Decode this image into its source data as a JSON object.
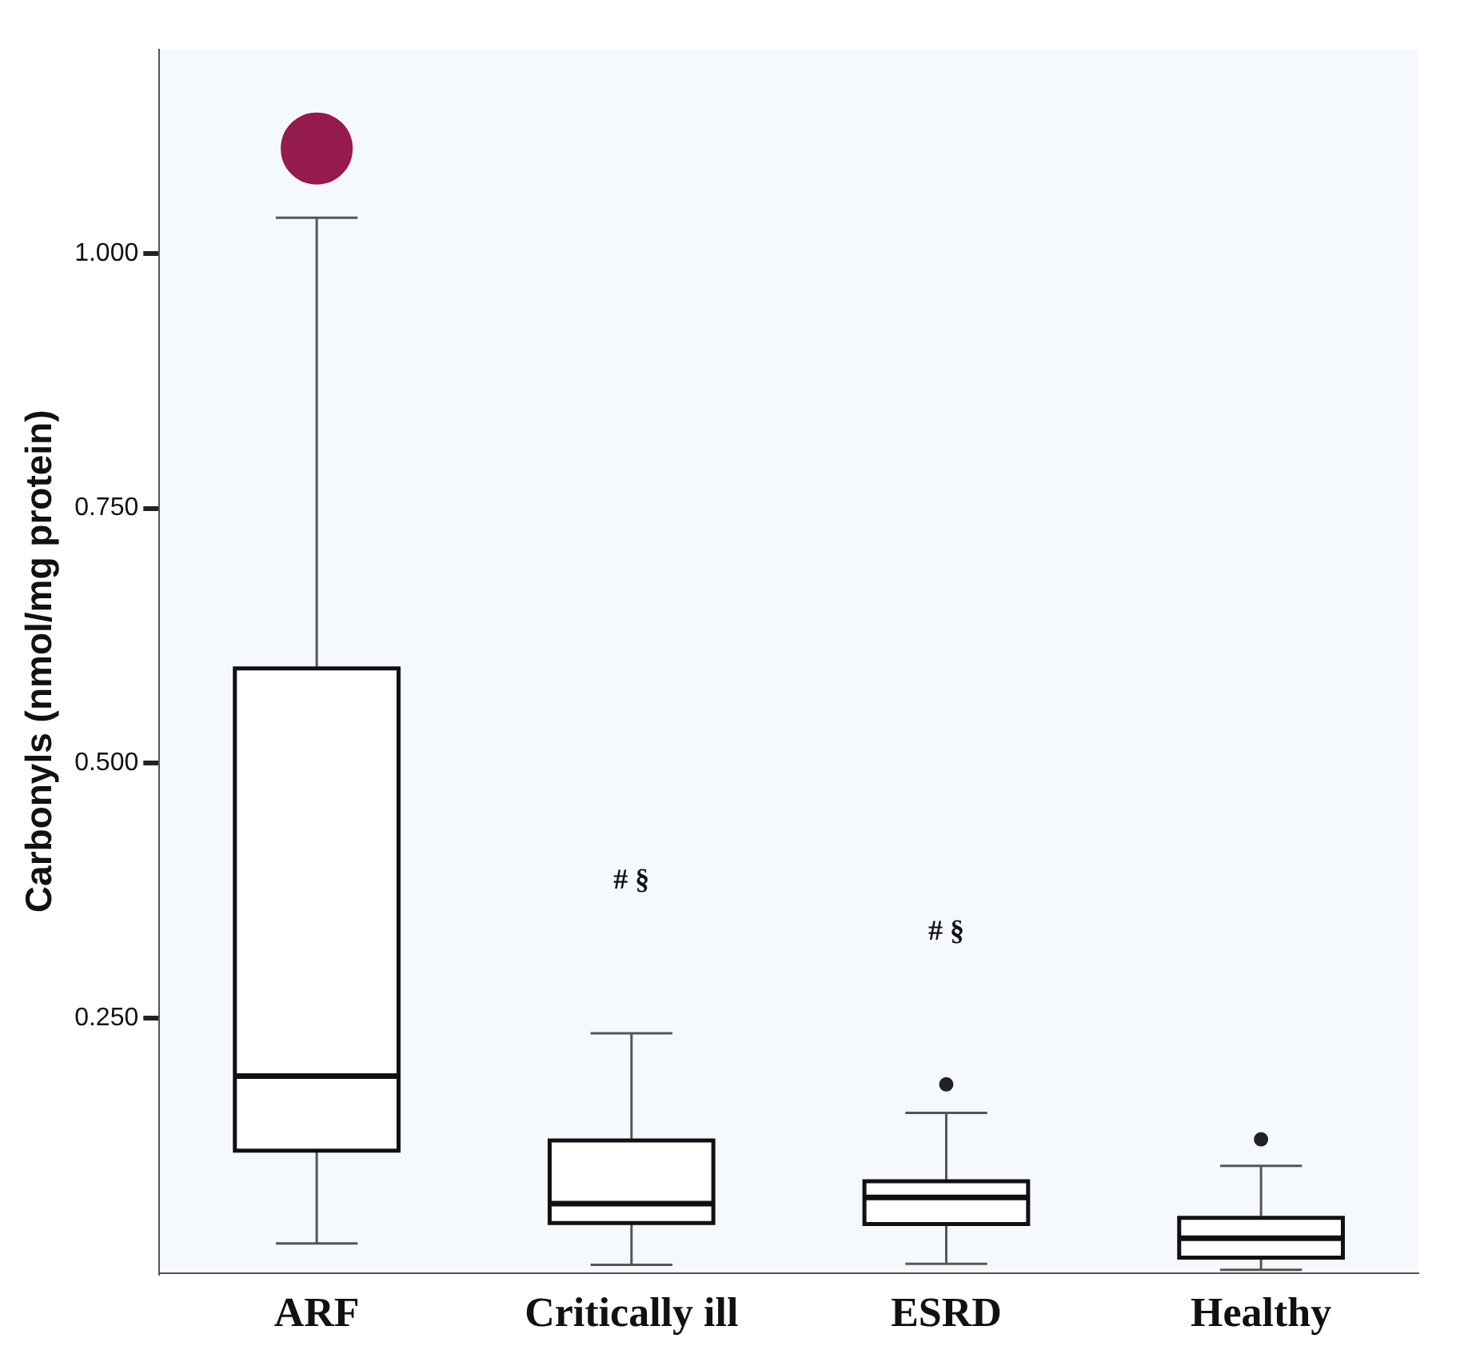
{
  "chart_data": {
    "type": "box",
    "ylabel": "Carbonyls (nmol/mg protein)",
    "categories": [
      "ARF",
      "Critically ill",
      "ESRD",
      "Healthy"
    ],
    "boxes": [
      {
        "low": 0.029,
        "q1": 0.12,
        "median": 0.193,
        "q3": 0.593,
        "high": 1.035
      },
      {
        "low": 0.008,
        "q1": 0.049,
        "median": 0.068,
        "q3": 0.13,
        "high": 0.235
      },
      {
        "low": 0.009,
        "q1": 0.048,
        "median": 0.074,
        "q3": 0.09,
        "high": 0.157,
        "outliers": [
          0.185
        ]
      },
      {
        "low": 0.003,
        "q1": 0.015,
        "median": 0.034,
        "q3": 0.054,
        "high": 0.105,
        "outliers": [
          0.131
        ]
      }
    ],
    "series": [
      {
        "type": "scatter",
        "x": [
          "ARF"
        ],
        "values": [
          1.103
        ],
        "color": "#951a4d"
      }
    ],
    "ylim": [
      0,
      1.2
    ],
    "yticks": [
      {
        "value": 0.25,
        "label": "0.250"
      },
      {
        "value": 0.5,
        "label": "0.500"
      },
      {
        "value": 0.75,
        "label": "0.750"
      },
      {
        "value": 1,
        "label": "1.000"
      }
    ],
    "annotations": [
      "# §",
      "# §"
    ],
    "grid": false,
    "legend": false,
    "marker": "circle"
  }
}
